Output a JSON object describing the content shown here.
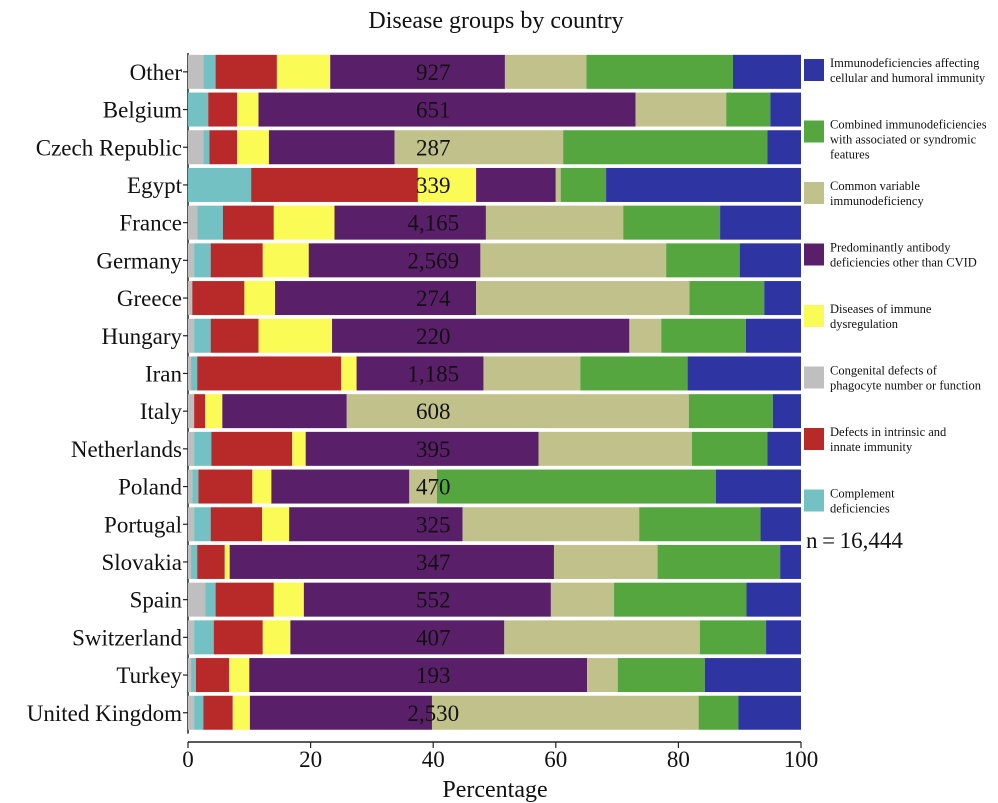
{
  "chart_data": {
    "type": "bar",
    "orientation": "horizontal",
    "stacked": true,
    "title": "Disease groups by country",
    "xlabel": "Percentage",
    "ylabel": "",
    "xlim": [
      0,
      100
    ],
    "xticks": [
      0,
      20,
      40,
      60,
      80,
      100
    ],
    "grid": false,
    "legend_position": "right",
    "categories": [
      "Other",
      "Belgium",
      "Czech Republic",
      "Egypt",
      "France",
      "Germany",
      "Greece",
      "Hungary",
      "Iran",
      "Italy",
      "Netherlands",
      "Poland",
      "Portugal",
      "Slovakia",
      "Spain",
      "Switzerland",
      "Turkey",
      "United Kingdom"
    ],
    "counts": [
      "927",
      "651",
      "287",
      "339",
      "4,165",
      "2,569",
      "274",
      "220",
      "1,185",
      "608",
      "395",
      "470",
      "325",
      "347",
      "552",
      "407",
      "193",
      "2,530"
    ],
    "series": [
      {
        "name": "Congenital defects of phagocyte number or function",
        "color": "#bfbfbf",
        "values": [
          2.5,
          0.0,
          2.5,
          0.0,
          1.5,
          1.0,
          0.7,
          1.0,
          0.5,
          1.0,
          1.0,
          0.7,
          1.0,
          0.5,
          2.8,
          1.0,
          0.5,
          1.0
        ]
      },
      {
        "name": "Complement deficiencies",
        "color": "#73c1c2",
        "values": [
          2.0,
          3.3,
          1.0,
          10.3,
          4.2,
          2.7,
          0.0,
          2.7,
          1.0,
          0.0,
          2.8,
          1.0,
          2.7,
          1.0,
          1.7,
          3.2,
          0.8,
          1.5
        ]
      },
      {
        "name": "Defects in intrinsic and innate immunity",
        "color": "#b82a2a",
        "values": [
          10.0,
          4.7,
          4.5,
          27.2,
          8.3,
          8.5,
          8.5,
          7.8,
          23.5,
          1.8,
          13.2,
          8.8,
          8.4,
          4.5,
          9.5,
          8.0,
          5.4,
          4.8
        ]
      },
      {
        "name": "Diseases of immune dysregulation",
        "color": "#fbfb55",
        "values": [
          8.7,
          3.5,
          5.2,
          9.5,
          9.9,
          7.5,
          5.0,
          12.0,
          2.5,
          2.8,
          2.2,
          3.1,
          4.4,
          0.8,
          4.9,
          4.5,
          3.3,
          2.8
        ]
      },
      {
        "name": "Predominantly antibody deficiencies other than CVID",
        "color": "#5a1f69",
        "values": [
          28.5,
          61.5,
          20.5,
          13.0,
          24.7,
          28.0,
          32.8,
          48.5,
          20.7,
          20.3,
          38.0,
          22.5,
          28.3,
          52.9,
          40.3,
          34.9,
          55.1,
          29.7
        ]
      },
      {
        "name": "Common variable immunodeficiency",
        "color": "#c1c18c",
        "values": [
          13.3,
          14.8,
          27.5,
          0.8,
          22.4,
          30.3,
          34.8,
          5.2,
          15.8,
          55.8,
          25.0,
          4.5,
          28.8,
          16.9,
          10.3,
          31.9,
          5.0,
          43.5
        ]
      },
      {
        "name": "Combined immunodeficiencies with associated or syndromic features",
        "color": "#56a640",
        "values": [
          23.9,
          7.2,
          33.3,
          7.4,
          15.8,
          12.0,
          12.2,
          13.8,
          17.5,
          13.7,
          12.3,
          45.5,
          19.8,
          20.0,
          21.6,
          10.8,
          14.2,
          6.5
        ]
      },
      {
        "name": "Immunodeficiencies affecting cellular and humoral immunity",
        "color": "#2e35a2",
        "values": [
          11.1,
          5.0,
          5.5,
          31.8,
          13.2,
          10.0,
          6.0,
          9.0,
          18.5,
          4.6,
          5.5,
          13.9,
          6.6,
          3.4,
          8.9,
          5.7,
          15.7,
          10.2
        ]
      }
    ],
    "legend_order": [
      "Immunodeficiencies affecting cellular and humoral immunity",
      "Combined immunodeficiencies with associated or syndromic features",
      "Common variable immunodeficiency",
      "Predominantly antibody deficiencies other than CVID",
      "Diseases of immune dysregulation",
      "Congenital defects of phagocyte number or function",
      "Defects in intrinsic and innate immunity",
      "Complement deficiencies"
    ],
    "legend_labels": [
      [
        "Immunodeficiencies affecting",
        "cellular and humoral immunity"
      ],
      [
        "Combined immunodeficiencies",
        "with associated or syndromic",
        "features"
      ],
      [
        "Common variable",
        "immunodeficiency"
      ],
      [
        "Predominantly antibody",
        "deficiencies other than CVID"
      ],
      [
        "Diseases of immune",
        "dysregulation"
      ],
      [
        "Congenital defects of",
        "phagocyte number or function"
      ],
      [
        "Defects in intrinsic and",
        "innate immunity"
      ],
      [
        "Complement",
        "deficiencies"
      ]
    ],
    "annotation": "n = 16,444"
  }
}
